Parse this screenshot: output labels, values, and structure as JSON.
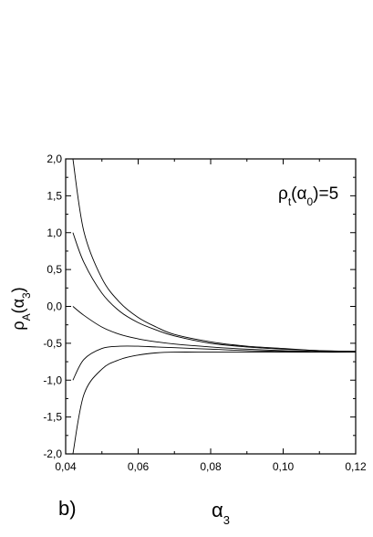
{
  "chart_data": {
    "type": "line",
    "panel_label": "b)",
    "annotation": "ρ_t(α_0)=5",
    "xlabel": "α_3",
    "ylabel": "ρ_A(α_3)",
    "xlim": [
      0.04,
      0.12
    ],
    "ylim": [
      -2.0,
      2.0
    ],
    "x_ticks": [
      0.04,
      0.06,
      0.08,
      0.1,
      0.12
    ],
    "x_tick_labels": [
      "0,04",
      "0,06",
      "0,08",
      "0,10",
      "0,12"
    ],
    "y_ticks": [
      2.0,
      1.5,
      1.0,
      0.5,
      0.0,
      -0.5,
      -1.0,
      -1.5,
      -2.0
    ],
    "y_tick_labels": [
      "2,0",
      "1,5",
      "1,0",
      "0,5",
      "0,0",
      "-0,5",
      "-1,0",
      "-1,5",
      "-2,0"
    ],
    "grid": false,
    "series": [
      {
        "x": [
          0.042,
          0.045,
          0.05,
          0.055,
          0.06,
          0.065,
          0.07,
          0.08,
          0.09,
          0.1,
          0.11,
          0.12
        ],
        "y": [
          2.0,
          1.02,
          0.38,
          0.05,
          -0.15,
          -0.28,
          -0.38,
          -0.48,
          -0.54,
          -0.57,
          -0.6,
          -0.61
        ]
      },
      {
        "x": [
          0.042,
          0.045,
          0.05,
          0.055,
          0.06,
          0.065,
          0.07,
          0.08,
          0.09,
          0.1,
          0.11,
          0.12
        ],
        "y": [
          1.0,
          0.6,
          0.18,
          -0.07,
          -0.22,
          -0.32,
          -0.4,
          -0.5,
          -0.55,
          -0.58,
          -0.6,
          -0.61
        ]
      },
      {
        "x": [
          0.042,
          0.045,
          0.05,
          0.055,
          0.06,
          0.065,
          0.07,
          0.08,
          0.09,
          0.1,
          0.11,
          0.12
        ],
        "y": [
          0.0,
          -0.12,
          -0.28,
          -0.38,
          -0.44,
          -0.48,
          -0.51,
          -0.55,
          -0.58,
          -0.6,
          -0.61,
          -0.62
        ]
      },
      {
        "x": [
          0.042,
          0.045,
          0.05,
          0.055,
          0.06,
          0.065,
          0.07,
          0.08,
          0.09,
          0.1,
          0.11,
          0.12
        ],
        "y": [
          -1.0,
          -0.72,
          -0.57,
          -0.54,
          -0.54,
          -0.55,
          -0.56,
          -0.58,
          -0.6,
          -0.61,
          -0.62,
          -0.62
        ]
      },
      {
        "x": [
          0.042,
          0.045,
          0.05,
          0.055,
          0.06,
          0.065,
          0.07,
          0.08,
          0.09,
          0.1,
          0.11,
          0.12
        ],
        "y": [
          -2.0,
          -1.2,
          -0.85,
          -0.72,
          -0.66,
          -0.63,
          -0.62,
          -0.62,
          -0.62,
          -0.62,
          -0.62,
          -0.62
        ]
      }
    ]
  }
}
